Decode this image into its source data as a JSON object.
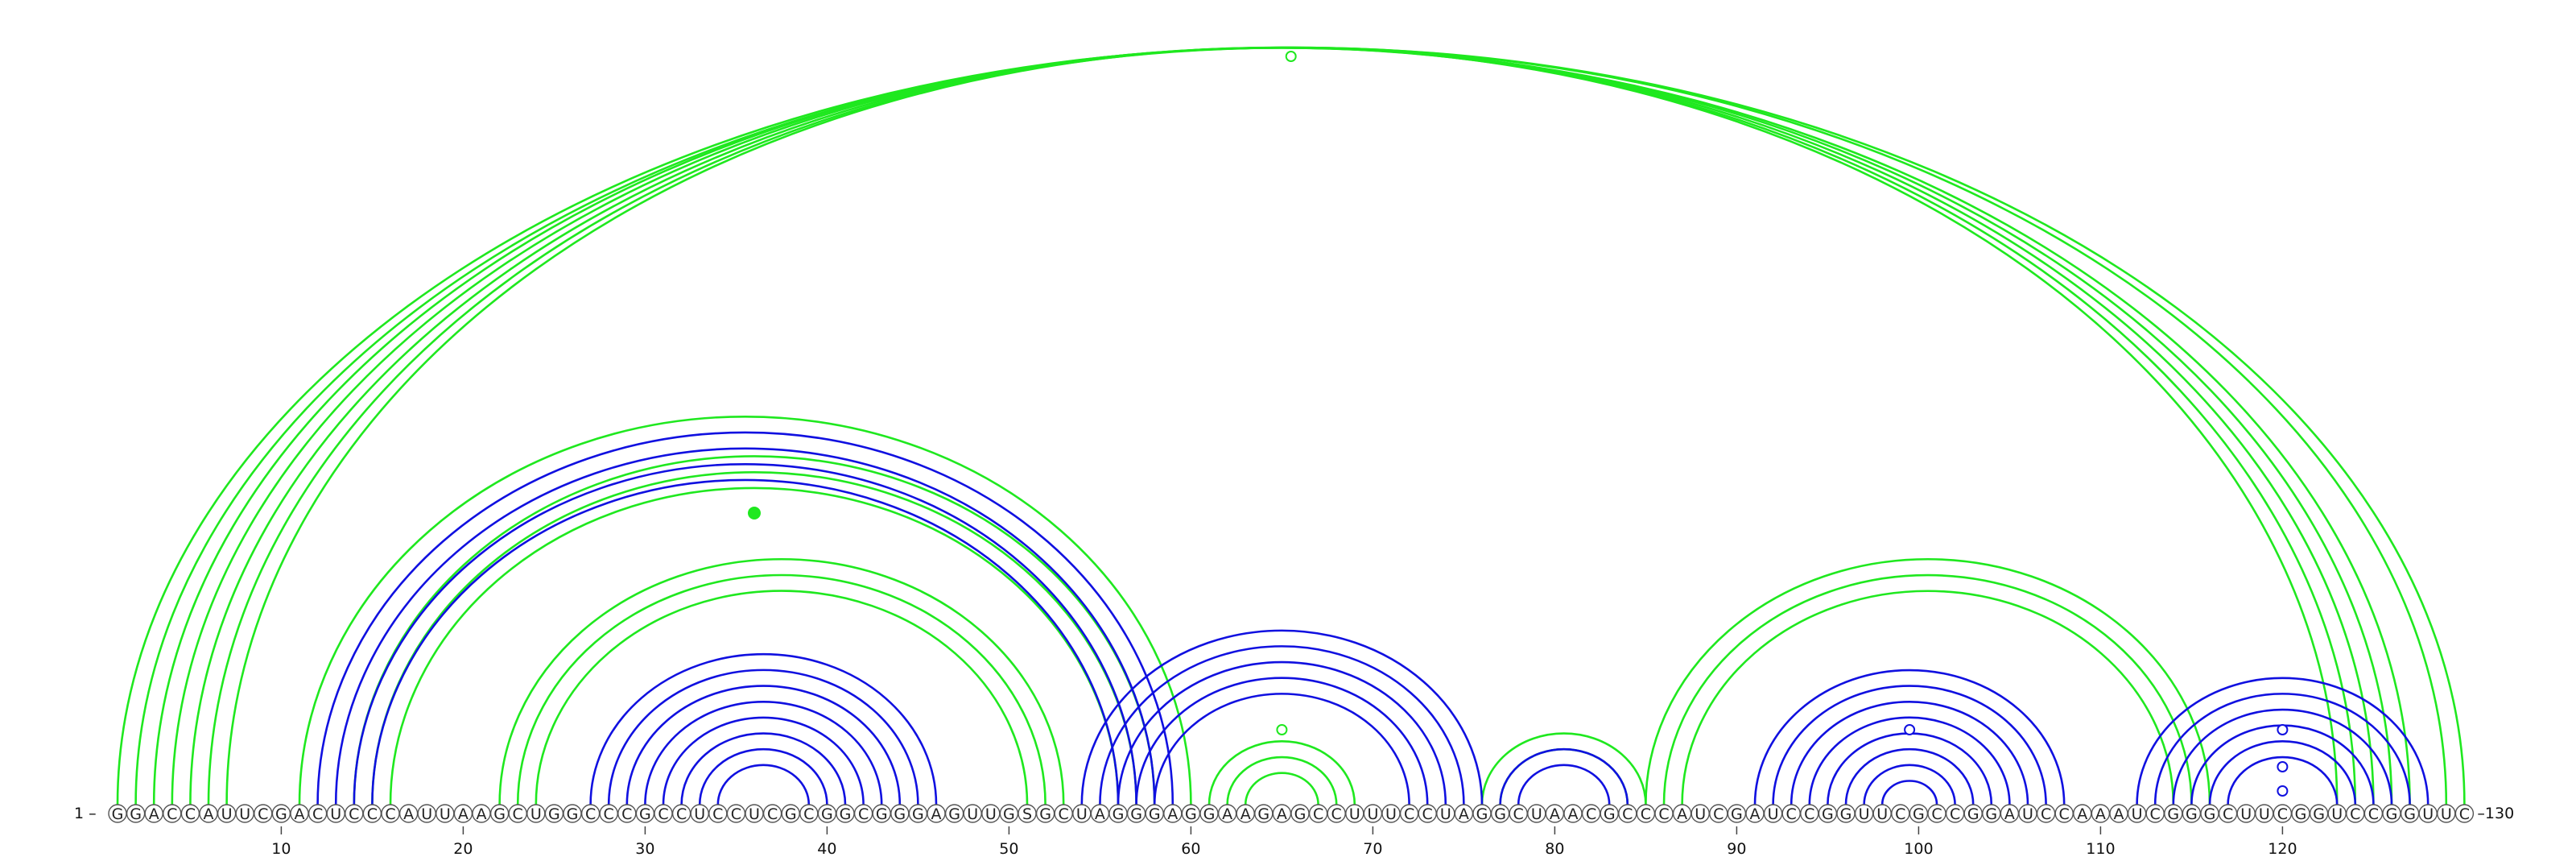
{
  "sequence": "GGACCAUUCGACUCCCAUUAAGCUGGCCCGCCUCCUCGCGGCGGGAGUUGSGCUAGGGAGGAAGAGCCUUUCCUAGGCUAACGCCCAUCGAUCCGGUUCGCCGGAUCCAAAUCGGGCUUCGGUCCGGUUC",
  "start_label": "1 –",
  "end_label": "–130",
  "tick_labels": [
    "10",
    "20",
    "30",
    "40",
    "50",
    "60",
    "70",
    "80",
    "90",
    "100",
    "110",
    "120"
  ],
  "colors": {
    "green": "#1fe81f",
    "blue": "#1010e0"
  },
  "chart_data": {
    "type": "arc-diagram",
    "length": 130,
    "ticks": [
      10,
      20,
      30,
      40,
      50,
      60,
      70,
      80,
      90,
      100,
      110,
      120
    ],
    "pairs_green": [
      [
        1,
        130
      ],
      [
        2,
        129
      ],
      [
        3,
        127
      ],
      [
        4,
        126
      ],
      [
        5,
        125
      ],
      [
        6,
        124
      ],
      [
        7,
        123
      ],
      [
        11,
        60
      ],
      [
        14,
        58
      ],
      [
        15,
        57
      ],
      [
        16,
        56
      ],
      [
        22,
        53
      ],
      [
        23,
        52
      ],
      [
        24,
        51
      ],
      [
        62,
        68
      ],
      [
        63,
        67
      ],
      [
        61,
        69
      ],
      [
        76,
        85
      ],
      [
        77,
        84
      ],
      [
        85,
        116
      ],
      [
        86,
        115
      ],
      [
        87,
        114
      ]
    ],
    "pairs_blue": [
      [
        12,
        59
      ],
      [
        13,
        58
      ],
      [
        14,
        57
      ],
      [
        15,
        56
      ],
      [
        27,
        46
      ],
      [
        28,
        45
      ],
      [
        29,
        44
      ],
      [
        30,
        43
      ],
      [
        31,
        42
      ],
      [
        32,
        41
      ],
      [
        33,
        40
      ],
      [
        34,
        39
      ],
      [
        54,
        76
      ],
      [
        55,
        75
      ],
      [
        56,
        74
      ],
      [
        57,
        73
      ],
      [
        58,
        72
      ],
      [
        77,
        84
      ],
      [
        78,
        83
      ],
      [
        91,
        108
      ],
      [
        92,
        107
      ],
      [
        93,
        106
      ],
      [
        94,
        105
      ],
      [
        95,
        104
      ],
      [
        96,
        103
      ],
      [
        97,
        102
      ],
      [
        98,
        101
      ],
      [
        112,
        128
      ],
      [
        113,
        127
      ],
      [
        114,
        126
      ],
      [
        115,
        125
      ],
      [
        116,
        124
      ],
      [
        117,
        123
      ]
    ],
    "loop_markers": [
      {
        "color": "green",
        "pos": 65.5,
        "style": "open-top"
      },
      {
        "color": "green",
        "pos": 36.0,
        "style": "filled"
      },
      {
        "color": "green",
        "pos": 65.0,
        "style": "open"
      },
      {
        "color": "blue",
        "pos": 99.5,
        "style": "open"
      },
      {
        "color": "blue",
        "pos": 120.0,
        "style": "open"
      },
      {
        "color": "blue",
        "pos": 120.0,
        "style": "open-low"
      },
      {
        "color": "blue",
        "pos": 120.0,
        "style": "open-mid"
      }
    ]
  }
}
